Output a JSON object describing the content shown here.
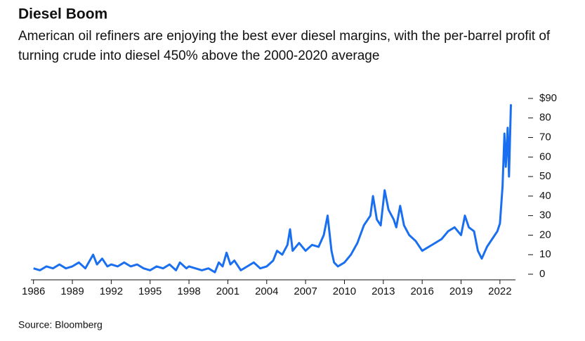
{
  "chart_data": {
    "type": "line",
    "title": "Diesel Boom",
    "subtitle": "American oil refiners are enjoying the best ever diesel margins, with the per-barrel profit of turning crude into diesel 450% above the 2000-2020 average",
    "source": "Source: Bloomberg",
    "color": "#1a6ff0",
    "x": [
      1986,
      1986.5,
      1987,
      1987.5,
      1988,
      1988.5,
      1989,
      1989.5,
      1990,
      1990.6,
      1990.9,
      1991.3,
      1991.7,
      1992,
      1992.5,
      1993,
      1993.5,
      1994,
      1994.5,
      1995,
      1995.5,
      1996,
      1996.5,
      1997,
      1997.3,
      1997.8,
      1998,
      1998.5,
      1999,
      1999.5,
      2000,
      2000.3,
      2000.6,
      2000.9,
      2001.2,
      2001.5,
      2002,
      2002.5,
      2003,
      2003.5,
      2004,
      2004.5,
      2004.8,
      2005.2,
      2005.6,
      2005.8,
      2006,
      2006.5,
      2007,
      2007.5,
      2008,
      2008.4,
      2008.7,
      2009,
      2009.2,
      2009.5,
      2010,
      2010.5,
      2011,
      2011.5,
      2012,
      2012.2,
      2012.5,
      2012.8,
      2013.1,
      2013.4,
      2013.8,
      2014,
      2014.3,
      2014.6,
      2015,
      2015.5,
      2016,
      2016.5,
      2017,
      2017.5,
      2018,
      2018.5,
      2019,
      2019.3,
      2019.6,
      2020,
      2020.3,
      2020.6,
      2021,
      2021.4,
      2021.8,
      2022,
      2022.2,
      2022.35,
      2022.45,
      2022.6,
      2022.7,
      2022.85
    ],
    "values": [
      3,
      2,
      4,
      3,
      5,
      3,
      4,
      6,
      3,
      10,
      5,
      8,
      4,
      5,
      4,
      6,
      4,
      5,
      3,
      2,
      4,
      3,
      5,
      2,
      6,
      3,
      4,
      3,
      2,
      3,
      1,
      6,
      4,
      11,
      5,
      7,
      2,
      4,
      6,
      3,
      4,
      7,
      12,
      10,
      15,
      23,
      12,
      16,
      12,
      15,
      14,
      20,
      30,
      12,
      6,
      4,
      6,
      10,
      16,
      25,
      30,
      40,
      28,
      25,
      43,
      33,
      28,
      24,
      35,
      25,
      20,
      17,
      12,
      14,
      16,
      18,
      22,
      24,
      20,
      30,
      24,
      22,
      12,
      8,
      14,
      18,
      22,
      26,
      45,
      72,
      55,
      75,
      50,
      87
    ],
    "xlim": [
      1985.8,
      2023.2
    ],
    "xticks": [
      1986,
      1989,
      1992,
      1995,
      1998,
      2001,
      2004,
      2007,
      2010,
      2013,
      2016,
      2019,
      2022
    ],
    "ylim": [
      0,
      90
    ],
    "yticks": [
      0,
      10,
      20,
      30,
      40,
      50,
      60,
      70,
      80,
      {
        "value": 90,
        "label": "$90"
      }
    ]
  }
}
